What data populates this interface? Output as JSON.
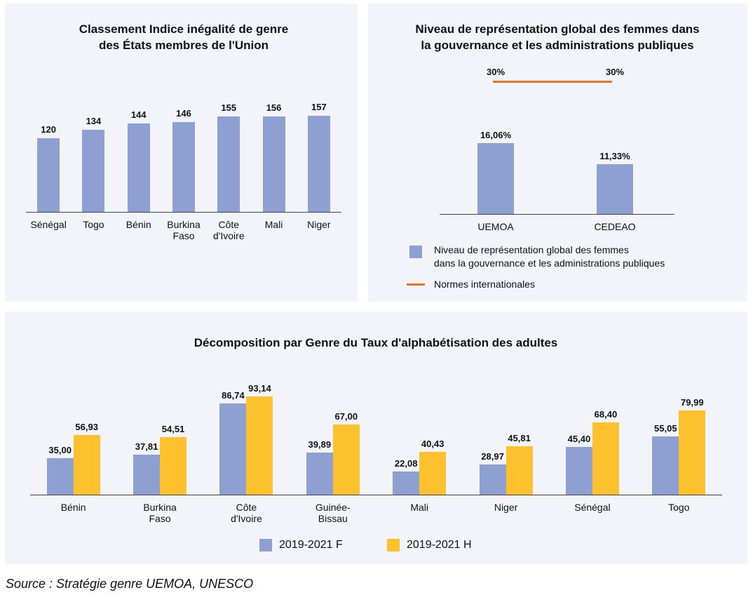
{
  "chart_data": [
    {
      "type": "bar",
      "title": "Classement Indice inégalité de genre\ndes États membres de l'Union",
      "categories": [
        "Sénégal",
        "Togo",
        "Bénin",
        "Burkina\nFaso",
        "Côte\nd'Ivoire",
        "Mali",
        "Niger"
      ],
      "values": [
        120,
        134,
        144,
        146,
        155,
        156,
        157
      ],
      "color": "#8e9fd2"
    },
    {
      "type": "bar",
      "title": "Niveau de représentation global des femmes dans\nla gouvernance et les administrations publiques",
      "categories": [
        "UEMOA",
        "CEDEAO"
      ],
      "series": [
        {
          "name": "Niveau de représentation global des femmes\ndans la gouvernance et les administrations publiques",
          "color": "#8e9fd2",
          "type": "bar",
          "values": [
            16.06,
            11.33
          ],
          "value_labels": [
            "16,06%",
            "11,33%"
          ]
        },
        {
          "name": "Normes internationales",
          "color": "#e8742a",
          "type": "line",
          "values": [
            30,
            30
          ],
          "value_labels": [
            "30%",
            "30%"
          ]
        }
      ],
      "legend": "bottom"
    },
    {
      "type": "bar",
      "title": "Décomposition par Genre du Taux d'alphabétisation des adultes",
      "categories": [
        "Bénin",
        "Burkina\nFaso",
        "Côte\nd'Ivoire",
        "Guinée-\nBissau",
        "Mali",
        "Niger",
        "Sénégal",
        "Togo"
      ],
      "series": [
        {
          "name": "2019-2021 F",
          "color": "#8e9fd2",
          "values": [
            35.0,
            37.81,
            86.74,
            39.89,
            22.08,
            28.97,
            45.4,
            55.05
          ],
          "value_labels": [
            "35,00",
            "37,81",
            "86,74",
            "39,89",
            "22,08",
            "28,97",
            "45,40",
            "55,05"
          ]
        },
        {
          "name": "2019-2021 H",
          "color": "#fcc12d",
          "values": [
            56.93,
            54.51,
            93.14,
            67.0,
            40.43,
            45.81,
            68.4,
            79.99
          ],
          "value_labels": [
            "56,93",
            "54,51",
            "93,14",
            "67,00",
            "40,43",
            "45,81",
            "68,40",
            "79,99"
          ]
        }
      ],
      "legend": "bottom"
    }
  ],
  "source": "Source : Stratégie genre UEMOA, UNESCO"
}
